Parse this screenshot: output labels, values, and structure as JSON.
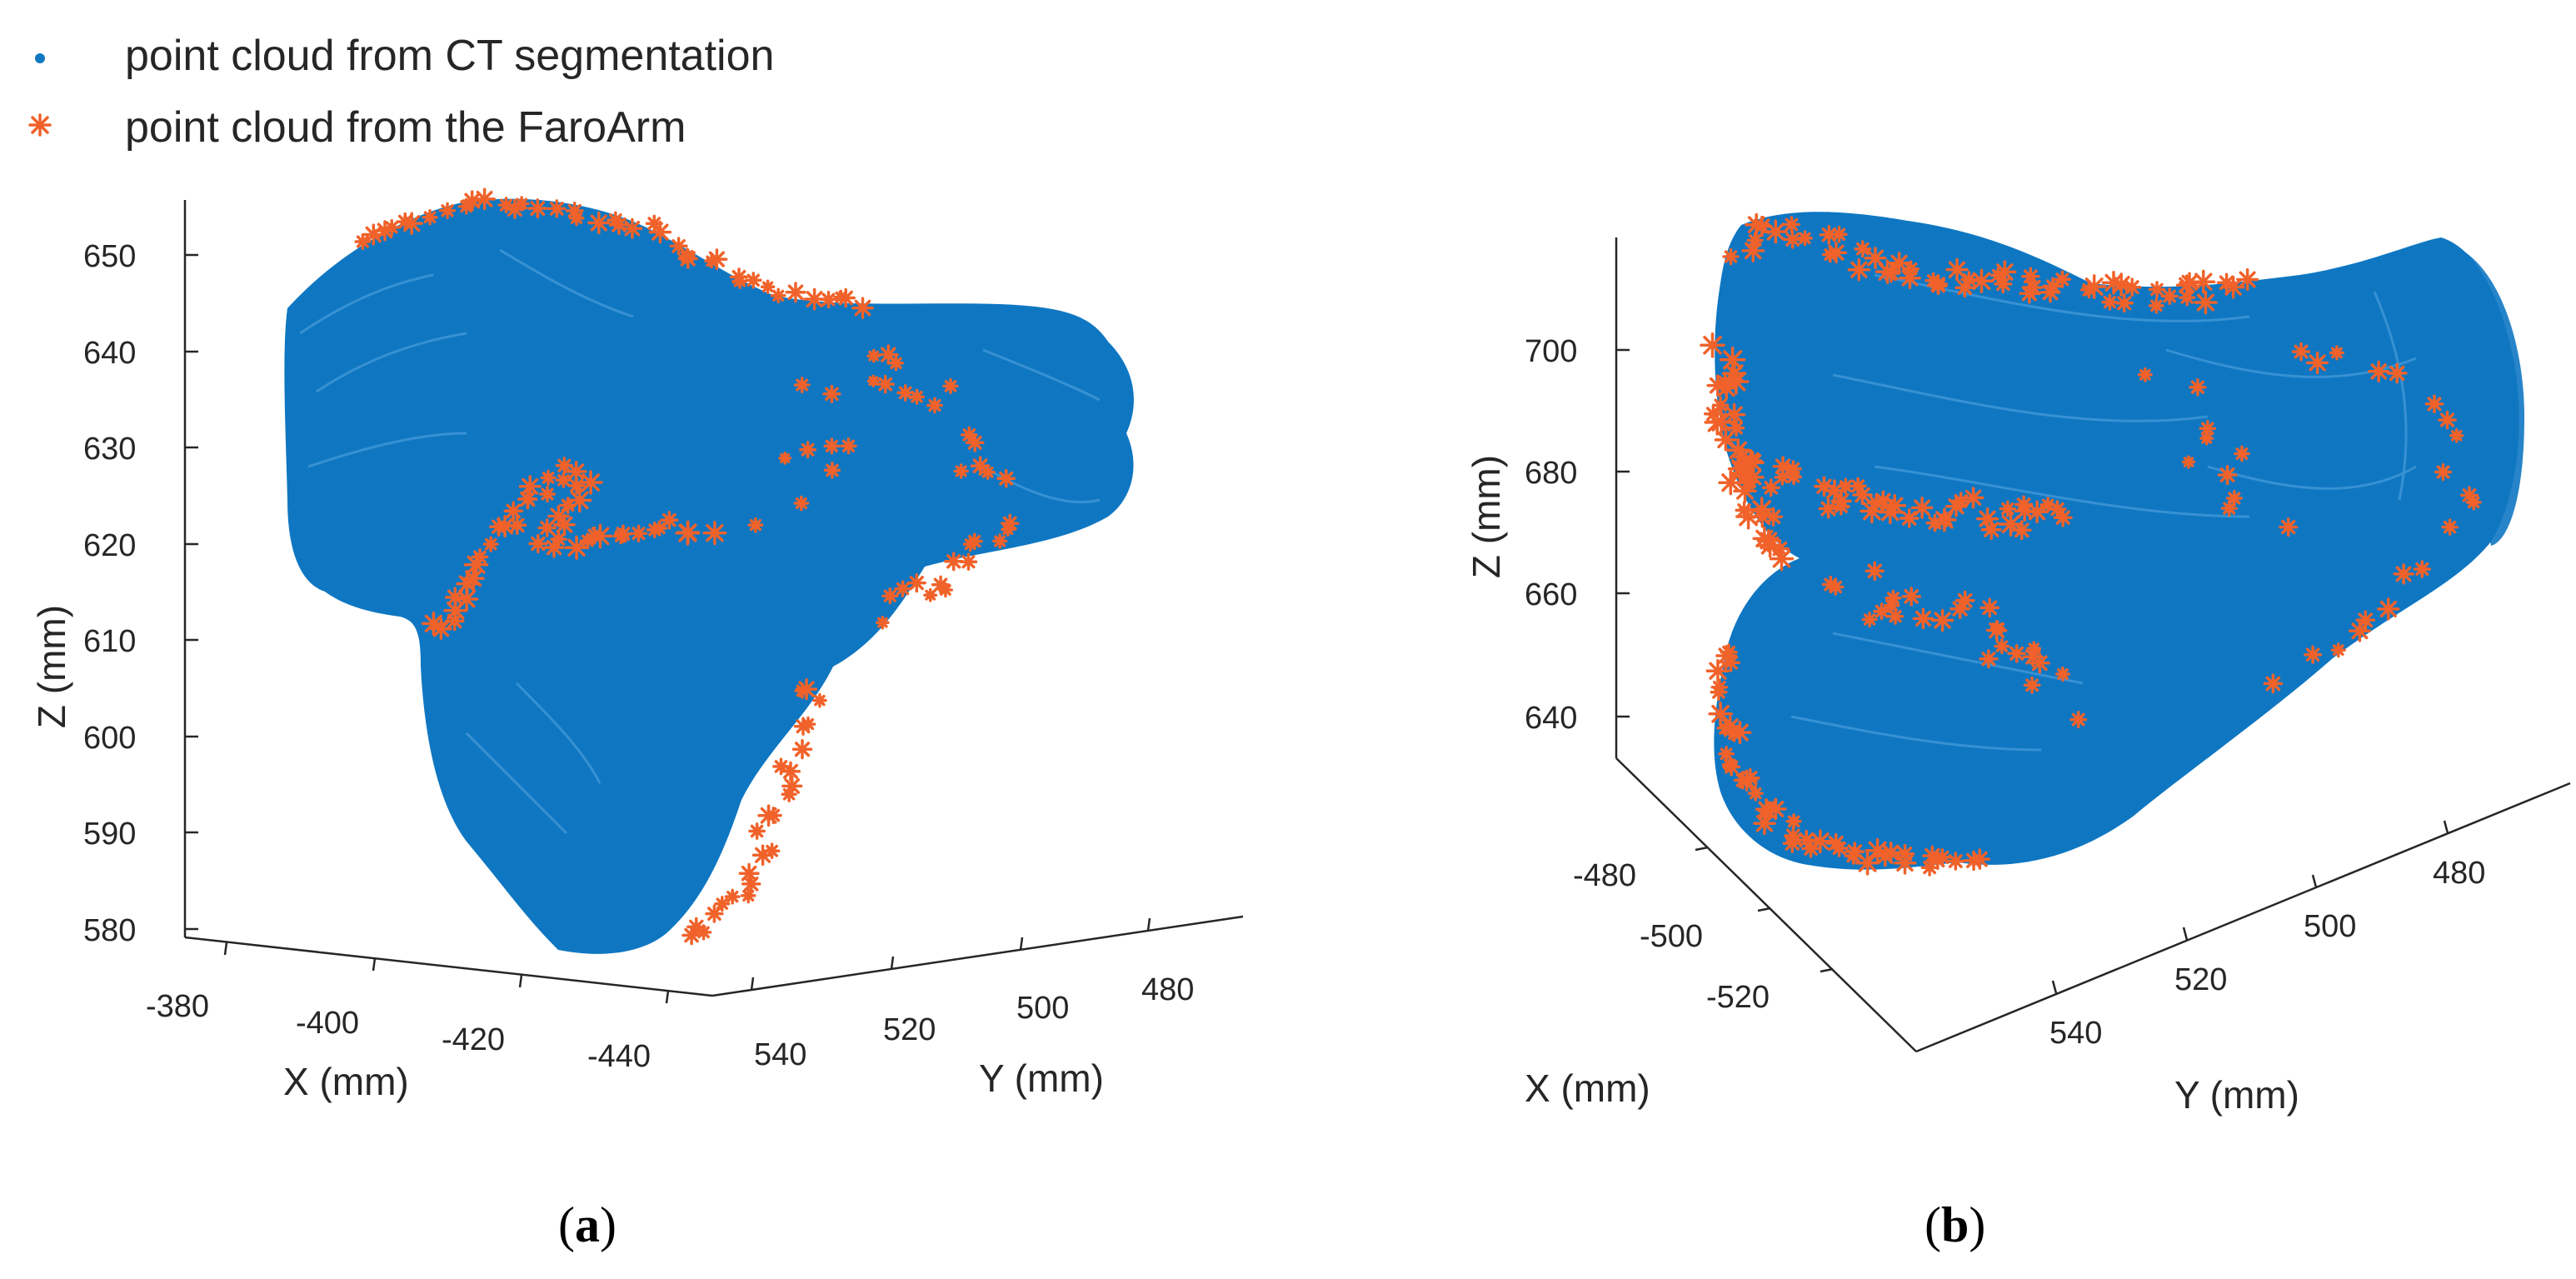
{
  "legend": {
    "entries": [
      {
        "label": "point cloud from CT segmentation",
        "marker": "dot",
        "color": "#0f77c2"
      },
      {
        "label": "point cloud from the FaroArm",
        "marker": "asterisk",
        "color": "#f0622a"
      }
    ]
  },
  "chart_data": [
    {
      "type": "scatter",
      "panel": "a",
      "panel_label": {
        "open": "(",
        "letter": "a",
        "close": ")"
      },
      "series": [
        {
          "name": "point cloud from CT segmentation",
          "color": "#0f77c2"
        },
        {
          "name": "point cloud from the FaroArm",
          "color": "#f0622a"
        }
      ],
      "xlabel": "X (mm)",
      "ylabel": "Y (mm)",
      "zlabel": "Z (mm)",
      "x_ticks": [
        "-380",
        "-400",
        "-420",
        "-440"
      ],
      "y_ticks": [
        "540",
        "520",
        "500",
        "480"
      ],
      "z_ticks": [
        "650",
        "640",
        "630",
        "620",
        "610",
        "600",
        "590",
        "580"
      ],
      "zlim": [
        577,
        655
      ]
    },
    {
      "type": "scatter",
      "panel": "b",
      "panel_label": {
        "open": "(",
        "letter": "b",
        "close": ")"
      },
      "series": [
        {
          "name": "point cloud from CT segmentation",
          "color": "#0f77c2"
        },
        {
          "name": "point cloud from the FaroArm",
          "color": "#f0622a"
        }
      ],
      "xlabel": "X (mm)",
      "ylabel": "Y (mm)",
      "zlabel": "Z (mm)",
      "x_ticks": [
        "-480",
        "-500",
        "-520"
      ],
      "y_ticks": [
        "480",
        "500",
        "520",
        "540"
      ],
      "z_ticks": [
        "700",
        "680",
        "660",
        "640"
      ],
      "zlim": [
        630,
        720
      ]
    }
  ]
}
